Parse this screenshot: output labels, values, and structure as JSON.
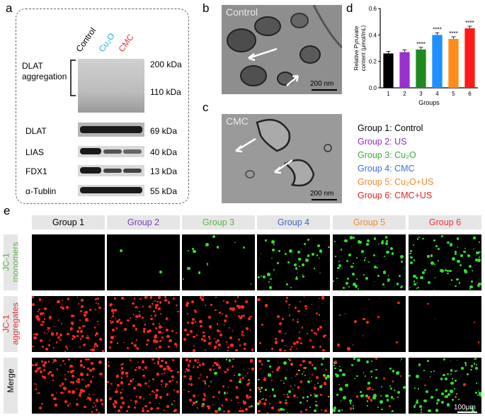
{
  "panels": {
    "a": "a",
    "b": "b",
    "c": "c",
    "d": "d",
    "e": "e"
  },
  "blot": {
    "lanes": [
      {
        "label": "Control",
        "color": "#000000"
      },
      {
        "label": "Cu₂O",
        "color": "#1fb3d6"
      },
      {
        "label": "CMC",
        "color": "#e8323c"
      }
    ],
    "rows": [
      {
        "label": "DLAT\naggregation",
        "kda_top": "200 kDa",
        "kda_bottom": "110 kDa"
      },
      {
        "label": "DLAT",
        "kda": "69 kDa"
      },
      {
        "label": "LIAS",
        "kda": "40 kDa"
      },
      {
        "label": "FDX1",
        "kda": "13 kDa"
      },
      {
        "label": "α-Tublin",
        "kda": "55 kDa"
      }
    ]
  },
  "em": {
    "b_label": "Control",
    "c_label": "CMC",
    "scale": "200 nm"
  },
  "chart_data": {
    "type": "bar",
    "categories": [
      "1",
      "2",
      "3",
      "4",
      "5",
      "6"
    ],
    "values": [
      0.26,
      0.27,
      0.29,
      0.4,
      0.37,
      0.45
    ],
    "colors": [
      "#000000",
      "#9b30d0",
      "#1f8a1f",
      "#1e90ff",
      "#ff8c1a",
      "#ff1a1a"
    ],
    "significance": [
      "",
      "",
      "****",
      "****",
      "****",
      "****"
    ],
    "xlabel": "Groups",
    "ylabel": "Relative Pyruvate content (μmol/mL)",
    "ylim": [
      0,
      0.6
    ],
    "yticks": [
      "0.0",
      "0.2",
      "0.4",
      "0.6"
    ]
  },
  "legend": [
    {
      "text": "Group 1: Control",
      "color": "#000000"
    },
    {
      "text": "Group 2: US",
      "color": "#8e2dbf"
    },
    {
      "text": "Group 3: Cu₂O",
      "color": "#3da83d"
    },
    {
      "text": "Group 4: CMC",
      "color": "#3d6fd6"
    },
    {
      "text": "Group 5: Cu₂O+US",
      "color": "#f08a2a"
    },
    {
      "text": "Group 6: CMC+US",
      "color": "#f01e1e"
    }
  ],
  "fluor": {
    "groups": [
      {
        "label": "Group 1",
        "color": "#000000"
      },
      {
        "label": "Group 2",
        "color": "#7a3cc0"
      },
      {
        "label": "Group 3",
        "color": "#5ab44a"
      },
      {
        "label": "Group 4",
        "color": "#3b66cc"
      },
      {
        "label": "Group 5",
        "color": "#f08a2a"
      },
      {
        "label": "Group 6",
        "color": "#e8323c"
      }
    ],
    "rows": [
      {
        "label": "JC-1\nmonomers",
        "color": "#5ab44a"
      },
      {
        "label": "JC-1\naggregates",
        "color": "#e8323c"
      },
      {
        "label": "Merge",
        "color": "#000000"
      }
    ],
    "green_level": [
      0,
      0.02,
      0.15,
      0.55,
      0.75,
      0.85
    ],
    "red_level": [
      0.85,
      0.9,
      0.7,
      0.45,
      0.12,
      0.03
    ],
    "scale": "100μm"
  }
}
